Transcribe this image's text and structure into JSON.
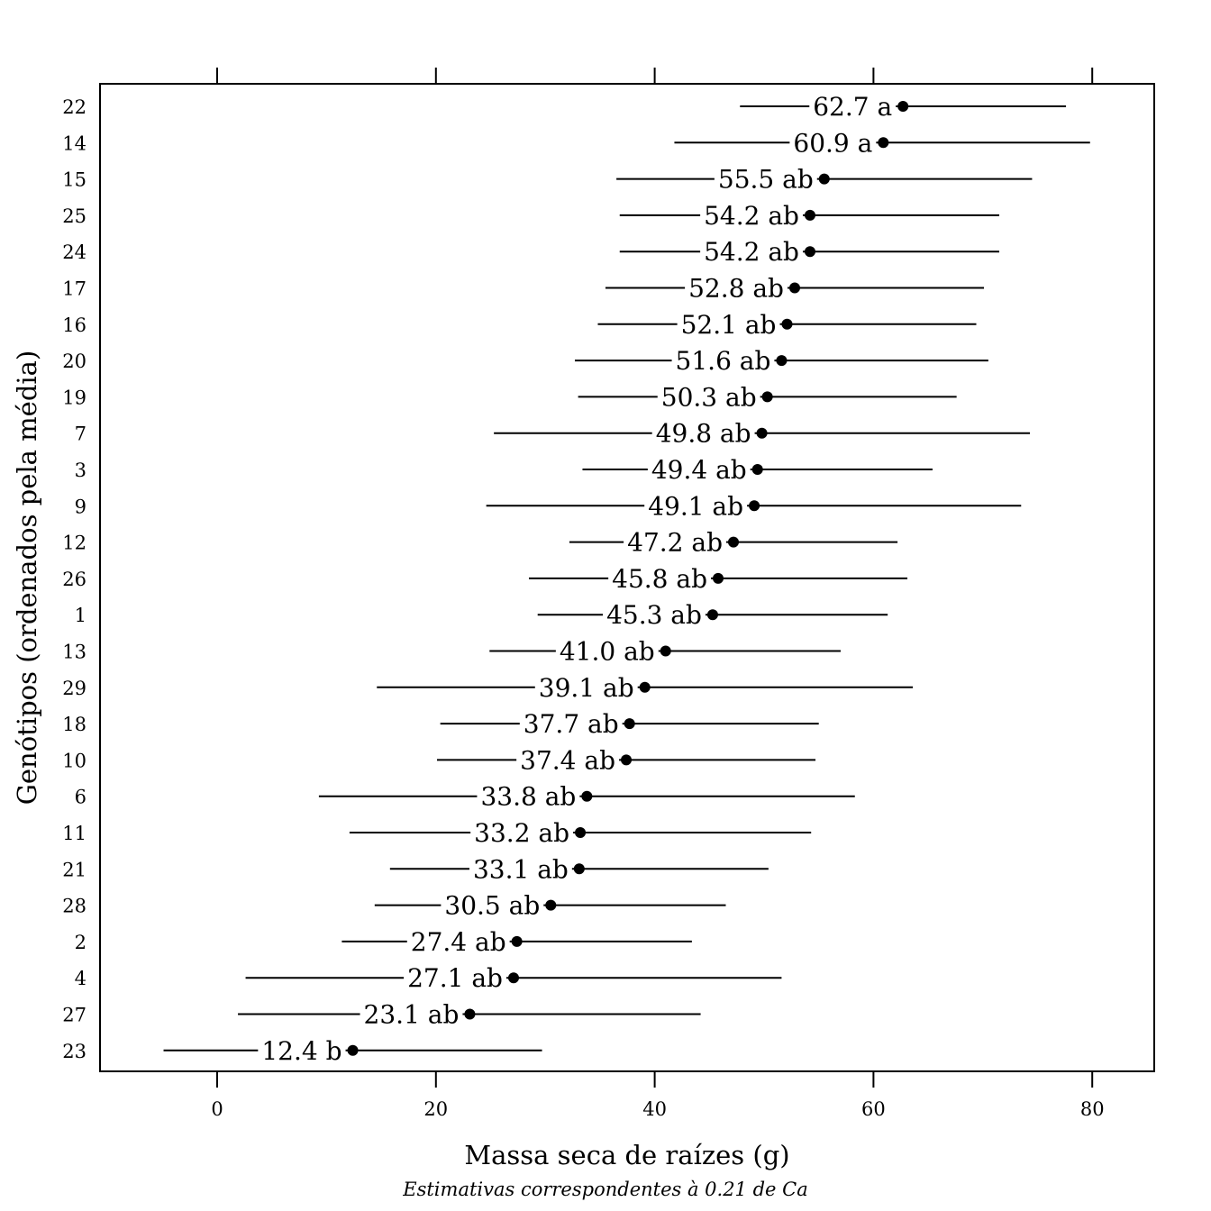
{
  "chart_data": {
    "type": "scatter",
    "subtype": "dotplot-with-intervals",
    "xlabel": "Massa seca de raízes (g)",
    "ylabel": "Genótipos (ordenados pela média)",
    "subtitle": "Estimativas correspondentes à 0.21 de Ca",
    "xlim": [
      -10.7,
      85.7
    ],
    "xticks": [
      0,
      20,
      40,
      60,
      80
    ],
    "xtick_labels": [
      "0",
      "20",
      "40",
      "60",
      "80"
    ],
    "grid": false,
    "point_color": "#000000",
    "line_color": "#000000",
    "rows": [
      {
        "genotype": "22",
        "mean": 62.7,
        "lower": 47.8,
        "upper": 77.6,
        "label": "62.7 a"
      },
      {
        "genotype": "14",
        "mean": 60.9,
        "lower": 41.8,
        "upper": 79.8,
        "label": "60.9 a"
      },
      {
        "genotype": "15",
        "mean": 55.5,
        "lower": 36.5,
        "upper": 74.5,
        "label": "55.5 ab"
      },
      {
        "genotype": "25",
        "mean": 54.2,
        "lower": 36.8,
        "upper": 71.5,
        "label": "54.2 ab"
      },
      {
        "genotype": "24",
        "mean": 54.2,
        "lower": 36.8,
        "upper": 71.5,
        "label": "54.2 ab"
      },
      {
        "genotype": "17",
        "mean": 52.8,
        "lower": 35.5,
        "upper": 70.1,
        "label": "52.8 ab"
      },
      {
        "genotype": "16",
        "mean": 52.1,
        "lower": 34.8,
        "upper": 69.4,
        "label": "52.1 ab"
      },
      {
        "genotype": "20",
        "mean": 51.6,
        "lower": 32.7,
        "upper": 70.5,
        "label": "51.6 ab"
      },
      {
        "genotype": "19",
        "mean": 50.3,
        "lower": 33.0,
        "upper": 67.6,
        "label": "50.3 ab"
      },
      {
        "genotype": "7",
        "mean": 49.8,
        "lower": 25.3,
        "upper": 74.3,
        "label": "49.8 ab"
      },
      {
        "genotype": "3",
        "mean": 49.4,
        "lower": 33.4,
        "upper": 65.4,
        "label": "49.4 ab"
      },
      {
        "genotype": "9",
        "mean": 49.1,
        "lower": 24.6,
        "upper": 73.5,
        "label": "49.1 ab"
      },
      {
        "genotype": "12",
        "mean": 47.2,
        "lower": 32.2,
        "upper": 62.2,
        "label": "47.2 ab"
      },
      {
        "genotype": "26",
        "mean": 45.8,
        "lower": 28.5,
        "upper": 63.1,
        "label": "45.8 ab"
      },
      {
        "genotype": "1",
        "mean": 45.3,
        "lower": 29.3,
        "upper": 61.3,
        "label": "45.3 ab"
      },
      {
        "genotype": "13",
        "mean": 41.0,
        "lower": 24.9,
        "upper": 57.0,
        "label": "41.0 ab"
      },
      {
        "genotype": "29",
        "mean": 39.1,
        "lower": 14.6,
        "upper": 63.6,
        "label": "39.1 ab"
      },
      {
        "genotype": "18",
        "mean": 37.7,
        "lower": 20.4,
        "upper": 55.0,
        "label": "37.7 ab"
      },
      {
        "genotype": "10",
        "mean": 37.4,
        "lower": 20.1,
        "upper": 54.7,
        "label": "37.4 ab"
      },
      {
        "genotype": "6",
        "mean": 33.8,
        "lower": 9.3,
        "upper": 58.3,
        "label": "33.8 ab"
      },
      {
        "genotype": "11",
        "mean": 33.2,
        "lower": 12.1,
        "upper": 54.3,
        "label": "33.2 ab"
      },
      {
        "genotype": "21",
        "mean": 33.1,
        "lower": 15.8,
        "upper": 50.4,
        "label": "33.1 ab"
      },
      {
        "genotype": "28",
        "mean": 30.5,
        "lower": 14.4,
        "upper": 46.5,
        "label": "30.5 ab"
      },
      {
        "genotype": "2",
        "mean": 27.4,
        "lower": 11.4,
        "upper": 43.4,
        "label": "27.4 ab"
      },
      {
        "genotype": "4",
        "mean": 27.1,
        "lower": 2.6,
        "upper": 51.6,
        "label": "27.1 ab"
      },
      {
        "genotype": "27",
        "mean": 23.1,
        "lower": 1.9,
        "upper": 44.2,
        "label": "23.1 ab"
      },
      {
        "genotype": "23",
        "mean": 12.4,
        "lower": -4.9,
        "upper": 29.7,
        "label": "12.4 b"
      }
    ]
  }
}
